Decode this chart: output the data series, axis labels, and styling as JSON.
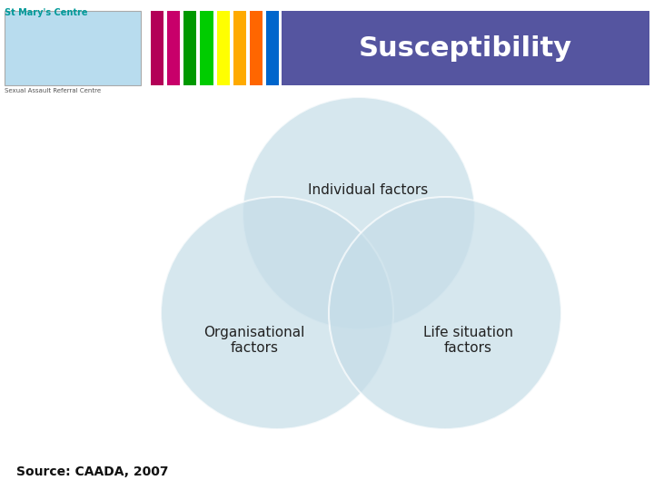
{
  "title": "Susceptibility",
  "title_bg_color": "#5555a0",
  "title_text_color": "#ffffff",
  "title_fontsize": 22,
  "background_color": "#ffffff",
  "circle_color": "#c5dde8",
  "circle_alpha": 0.7,
  "label_top": "Individual factors",
  "label_left": "Organisational\nfactors",
  "label_right": "Life situation\nfactors",
  "label_fontsize": 11,
  "source_text": "Source: CAADA, 2007",
  "source_fontsize": 10,
  "stripe_colors": [
    "#b30057",
    "#c8006a",
    "#009900",
    "#00cc00",
    "#ffff00",
    "#ffaa00",
    "#ff6600",
    "#0066cc"
  ],
  "stmarys_color": "#009999",
  "header_text": "St Mary's Centre",
  "subheader_text": "Sexual Assault Referral Centre"
}
